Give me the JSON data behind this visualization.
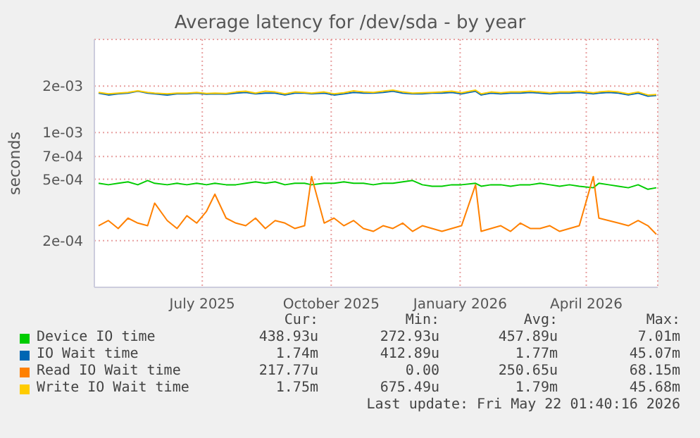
{
  "chart_data": {
    "type": "line",
    "title": "Average latency for /dev/sda - by year",
    "ylabel": "seconds",
    "x": [
      "2025-04-18",
      "2025-04-25",
      "2025-05-02",
      "2025-05-09",
      "2025-05-16",
      "2025-05-23",
      "2025-05-28",
      "2025-06-06",
      "2025-06-13",
      "2025-06-20",
      "2025-06-27",
      "2025-07-04",
      "2025-07-10",
      "2025-07-18",
      "2025-07-25",
      "2025-08-01",
      "2025-08-08",
      "2025-08-15",
      "2025-08-22",
      "2025-08-29",
      "2025-09-05",
      "2025-09-12",
      "2025-09-17",
      "2025-09-26",
      "2025-10-03",
      "2025-10-10",
      "2025-10-17",
      "2025-10-24",
      "2025-10-31",
      "2025-11-07",
      "2025-11-14",
      "2025-11-21",
      "2025-11-28",
      "2025-12-05",
      "2025-12-12",
      "2025-12-19",
      "2025-12-26",
      "2026-01-02",
      "2026-01-12",
      "2026-01-16",
      "2026-01-23",
      "2026-01-30",
      "2026-02-06",
      "2026-02-13",
      "2026-02-20",
      "2026-02-27",
      "2026-03-06",
      "2026-03-13",
      "2026-03-20",
      "2026-03-27",
      "2026-04-06",
      "2026-04-10",
      "2026-04-17",
      "2026-04-24",
      "2026-05-01",
      "2026-05-08",
      "2026-05-15",
      "2026-05-21"
    ],
    "series": [
      {
        "name": "Device IO time",
        "color": "#00cc00",
        "values": [
          0.00047,
          0.00046,
          0.00047,
          0.00048,
          0.00046,
          0.00049,
          0.00047,
          0.00046,
          0.00047,
          0.00046,
          0.00047,
          0.00046,
          0.00047,
          0.00046,
          0.00046,
          0.00047,
          0.00048,
          0.00047,
          0.00048,
          0.00046,
          0.00047,
          0.00047,
          0.00046,
          0.00047,
          0.00047,
          0.00048,
          0.00047,
          0.00047,
          0.00046,
          0.00047,
          0.00047,
          0.00048,
          0.00049,
          0.00046,
          0.00045,
          0.00045,
          0.00046,
          0.00046,
          0.00047,
          0.00045,
          0.00046,
          0.00046,
          0.00045,
          0.00046,
          0.00046,
          0.00047,
          0.00046,
          0.00045,
          0.00046,
          0.00045,
          0.00044,
          0.00047,
          0.00046,
          0.00045,
          0.00044,
          0.00046,
          0.00043,
          0.00044
        ]
      },
      {
        "name": "IO Wait time",
        "color": "#0066b3",
        "values": [
          0.0018,
          0.00175,
          0.00178,
          0.0018,
          0.00185,
          0.0018,
          0.00178,
          0.00175,
          0.00178,
          0.00178,
          0.0018,
          0.00177,
          0.00178,
          0.00177,
          0.0018,
          0.00182,
          0.00178,
          0.0018,
          0.0018,
          0.00175,
          0.0018,
          0.0018,
          0.00178,
          0.0018,
          0.00175,
          0.00178,
          0.00182,
          0.0018,
          0.0018,
          0.00182,
          0.00185,
          0.0018,
          0.00178,
          0.00178,
          0.0018,
          0.0018,
          0.00182,
          0.00178,
          0.00185,
          0.00175,
          0.0018,
          0.00178,
          0.0018,
          0.0018,
          0.00182,
          0.0018,
          0.00178,
          0.0018,
          0.0018,
          0.00182,
          0.00178,
          0.0018,
          0.00182,
          0.0018,
          0.00175,
          0.0018,
          0.00172,
          0.00174
        ]
      },
      {
        "name": "Read IO Wait time",
        "color": "#ff8000",
        "values": [
          0.00025,
          0.00027,
          0.00024,
          0.00028,
          0.00026,
          0.00025,
          0.00035,
          0.00027,
          0.00024,
          0.00029,
          0.00026,
          0.00031,
          0.0004,
          0.00028,
          0.00026,
          0.00025,
          0.00028,
          0.00024,
          0.00027,
          0.00026,
          0.00024,
          0.00025,
          0.00052,
          0.00026,
          0.00028,
          0.00025,
          0.00027,
          0.00024,
          0.00023,
          0.00025,
          0.00024,
          0.00026,
          0.00023,
          0.00025,
          0.00024,
          0.00023,
          0.00024,
          0.00025,
          0.00046,
          0.00023,
          0.00024,
          0.00025,
          0.00023,
          0.00026,
          0.00024,
          0.00024,
          0.00025,
          0.00023,
          0.00024,
          0.00025,
          0.00052,
          0.00028,
          0.00027,
          0.00026,
          0.00025,
          0.00027,
          0.00025,
          0.00022
        ]
      },
      {
        "name": "Write IO Wait time",
        "color": "#ffcc00",
        "values": [
          0.00182,
          0.00178,
          0.0018,
          0.00182,
          0.00186,
          0.00182,
          0.0018,
          0.00178,
          0.0018,
          0.0018,
          0.00182,
          0.00179,
          0.0018,
          0.00179,
          0.00183,
          0.00185,
          0.0018,
          0.00185,
          0.00183,
          0.00178,
          0.00183,
          0.00182,
          0.0018,
          0.00183,
          0.00178,
          0.00181,
          0.00186,
          0.00183,
          0.00182,
          0.00185,
          0.00188,
          0.00183,
          0.0018,
          0.00181,
          0.00182,
          0.00183,
          0.00185,
          0.00181,
          0.00188,
          0.00178,
          0.00183,
          0.00181,
          0.00183,
          0.00183,
          0.00185,
          0.00183,
          0.00181,
          0.00183,
          0.00183,
          0.00185,
          0.00181,
          0.00183,
          0.00185,
          0.00183,
          0.00178,
          0.00183,
          0.00175,
          0.00176
        ]
      }
    ],
    "xlim": [
      "2025-04-15",
      "2026-05-22"
    ],
    "xticks": [
      {
        "value": "2025-07-01",
        "label": "July 2025"
      },
      {
        "value": "2025-10-01",
        "label": "October 2025"
      },
      {
        "value": "2026-01-01",
        "label": "January 2026"
      },
      {
        "value": "2026-04-01",
        "label": "April 2026"
      }
    ],
    "ylim": [
      0.0001,
      0.004
    ],
    "yticks": [
      {
        "value": 0.0002,
        "label": "2e-04"
      },
      {
        "value": 0.0005,
        "label": "5e-04"
      },
      {
        "value": 0.0007,
        "label": "7e-04"
      },
      {
        "value": 0.001,
        "label": "1e-03"
      },
      {
        "value": 0.002,
        "label": "2e-03"
      }
    ],
    "log": "y",
    "grid": true,
    "legend": "bottom",
    "marker": "none",
    "line_style": "solid",
    "annotations": [
      "Cur:",
      "Min:",
      "Avg:",
      "Max:",
      "438.93u",
      "272.93u",
      "457.89u",
      "7.01m",
      "1.74m",
      "412.89u",
      "1.77m",
      "45.07m",
      "217.77u",
      "0.00",
      "250.65u",
      "68.15m",
      "1.75m",
      "675.49u",
      "1.79m",
      "45.68m",
      "Last update: Fri May 22 01:40:16 2026"
    ]
  }
}
